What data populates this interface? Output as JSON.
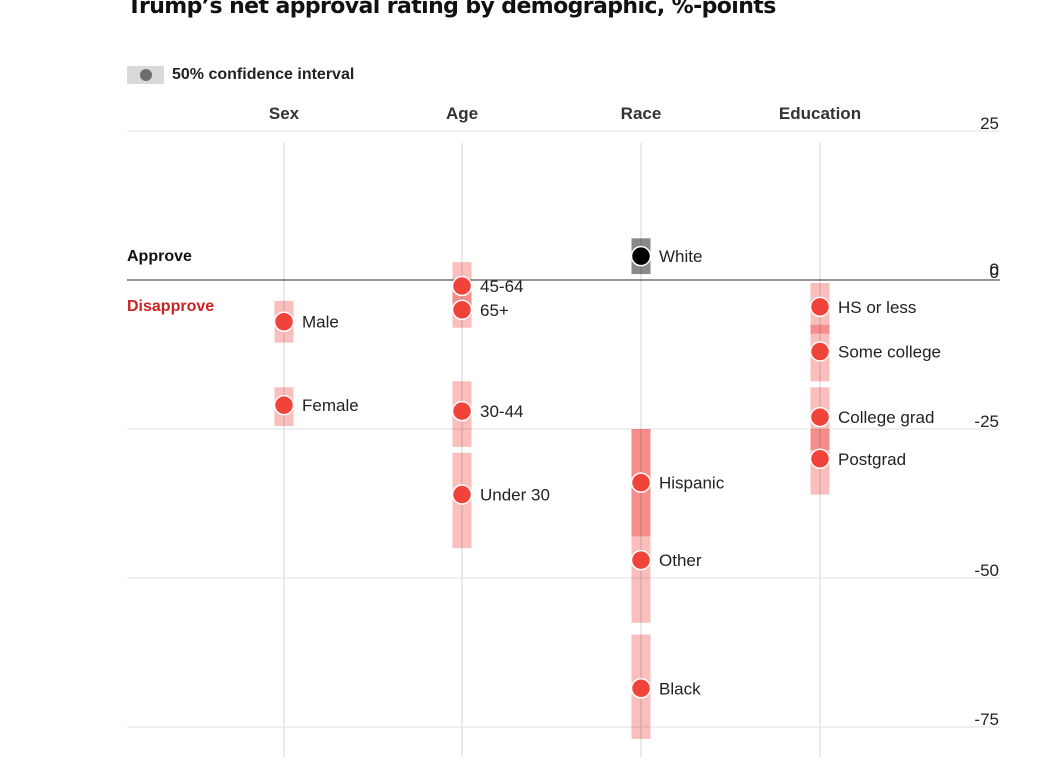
{
  "chart_data": {
    "type": "dot-range",
    "title": "Trump’s net approval rating by demographic, %-points",
    "legend": {
      "label": "50% confidence interval",
      "placement": "top-left"
    },
    "approve_label": "Approve",
    "disapprove_label": "Disapprove",
    "ylim": [
      -80,
      25
    ],
    "yticks": [
      25,
      0,
      -25,
      -50,
      -75
    ],
    "colors": {
      "negative": "#f0433a",
      "negative_ci": "#f9b3b0",
      "negative_overlap": "#f08b86",
      "positive": "#000000",
      "positive_ci": "#8a8a8a",
      "disapprove": "#cc2222"
    },
    "categories": [
      {
        "name": "Sex",
        "points": [
          {
            "label": "Male",
            "value": -7,
            "ci": [
              -10.5,
              -3.5
            ]
          },
          {
            "label": "Female",
            "value": -21,
            "ci": [
              -24.5,
              -18
            ]
          }
        ]
      },
      {
        "name": "Age",
        "points": [
          {
            "label": "45-64",
            "value": -1,
            "ci": [
              -6,
              3
            ]
          },
          {
            "label": "65+",
            "value": -5,
            "ci": [
              -8,
              -2
            ]
          },
          {
            "label": "30-44",
            "value": -22,
            "ci": [
              -28,
              -17
            ]
          },
          {
            "label": "Under 30",
            "value": -36,
            "ci": [
              -45,
              -29
            ]
          }
        ]
      },
      {
        "name": "Race",
        "points": [
          {
            "label": "White",
            "value": 4,
            "ci": [
              1,
              7
            ]
          },
          {
            "label": "Hispanic",
            "value": -34,
            "ci": [
              -43,
              -25
            ]
          },
          {
            "label": "Other",
            "value": -47,
            "ci": [
              -57.5,
              -25
            ]
          },
          {
            "label": "Black",
            "value": -68.5,
            "ci": [
              -77,
              -59.5
            ]
          }
        ]
      },
      {
        "name": "Education",
        "points": [
          {
            "label": "HS or less",
            "value": -4.5,
            "ci": [
              -9,
              -0.5
            ]
          },
          {
            "label": "Some college",
            "value": -12,
            "ci": [
              -17,
              -7.5
            ]
          },
          {
            "label": "College grad",
            "value": -23,
            "ci": [
              -28.5,
              -18
            ]
          },
          {
            "label": "Postgrad",
            "value": -30,
            "ci": [
              -36,
              -25
            ]
          }
        ]
      }
    ]
  }
}
